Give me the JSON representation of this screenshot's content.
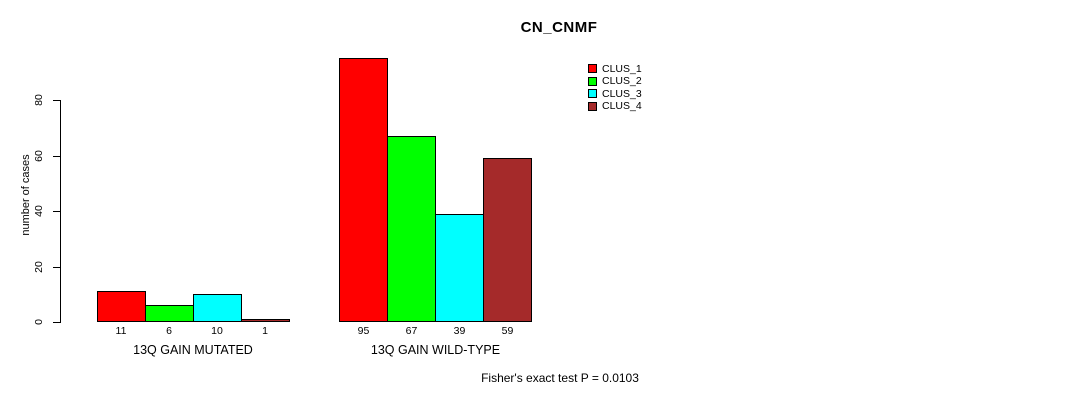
{
  "chart_data": {
    "type": "bar",
    "title": "CN_CNMF",
    "xlabel": "",
    "ylabel": "number of cases",
    "categories": [
      "13Q GAIN MUTATED",
      "13Q GAIN WILD-TYPE"
    ],
    "series": [
      {
        "name": "CLUS_1",
        "color": "#ff0000",
        "values": [
          11,
          95
        ]
      },
      {
        "name": "CLUS_2",
        "color": "#00ff00",
        "values": [
          6,
          67
        ]
      },
      {
        "name": "CLUS_3",
        "color": "#00ffff",
        "values": [
          10,
          39
        ]
      },
      {
        "name": "CLUS_4",
        "color": "#a52a2a",
        "values": [
          1,
          59
        ]
      }
    ],
    "y_ticks": [
      0,
      20,
      40,
      60,
      80
    ],
    "ylim": [
      0,
      95
    ],
    "grid": false,
    "legend_position": "top-right",
    "bar_value_labels_shown": true
  },
  "footnote": "Fisher's exact test P = 0.0103",
  "colors": {
    "background": "#ffffff",
    "axis": "#000000",
    "text": "#000000"
  }
}
